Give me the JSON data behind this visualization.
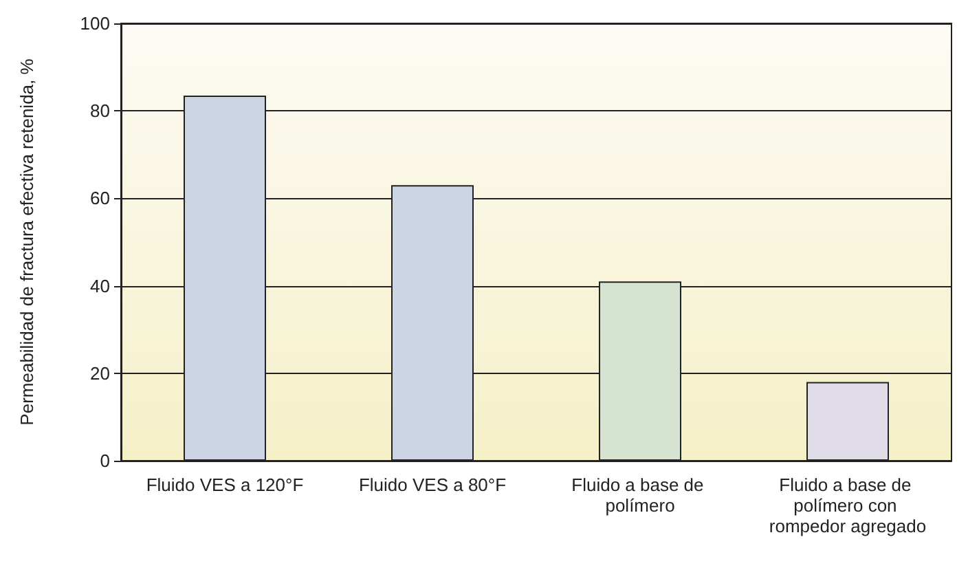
{
  "chart_data": {
    "type": "bar",
    "ylabel": "Permeabilidad de fractura efectiva retenida, %",
    "categories": [
      "Fluido VES a 120°F",
      "Fluido VES a 80°F",
      "Fluido a base de polímero",
      "Fluido a base de polímero con rompedor agregado"
    ],
    "values": [
      83.5,
      63,
      41,
      18
    ],
    "colors": [
      "#cdd5e5",
      "#cdd5e5",
      "#d6e3d0",
      "#e1dde8"
    ],
    "ylim": [
      0,
      100
    ],
    "yticks": [
      0,
      20,
      40,
      60,
      80,
      100
    ],
    "grid": "y"
  }
}
